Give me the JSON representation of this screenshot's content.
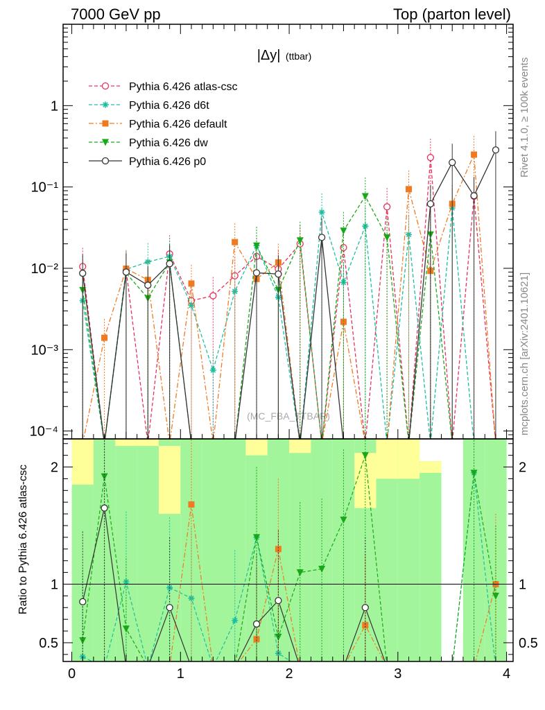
{
  "header": {
    "left": "7000 GeV pp",
    "right": "Top (parton level)"
  },
  "side_labels": {
    "rivet": "Rivet 4.1.0, ≥ 100k events",
    "source": "mcplots.cern.ch [arXiv:2401.10621]"
  },
  "watermark": "(MC_FBA_TTBAR)",
  "chart_data": [
    {
      "type": "line",
      "title": "|Δy| (ttbar)",
      "title_main": "|Δy|",
      "title_sub": "(ttbar)",
      "xlabel": "",
      "ylabel": "",
      "yscale": "log",
      "xlim": [
        -0.08,
        4.06
      ],
      "ylim": [
        8e-05,
        10
      ],
      "y_tick_labels": [
        "1",
        "10⁻¹",
        "10⁻²",
        "10⁻³",
        "10⁻⁴"
      ],
      "y_tick_values": [
        1,
        0.1,
        0.01,
        0.001,
        0.0001
      ],
      "floor": 7e-05,
      "x": [
        0.1,
        0.3,
        0.5,
        0.7,
        0.9,
        1.1,
        1.3,
        1.5,
        1.7,
        1.9,
        2.1,
        2.3,
        2.5,
        2.7,
        2.9,
        3.1,
        3.3,
        3.5,
        3.7,
        3.9
      ],
      "series": [
        {
          "name": "Pythia 6.426 atlas-csc",
          "color": "#e8305a",
          "marker": "circle-open",
          "dash": "5,3",
          "values": [
            0.0105,
            null,
            0.0095,
            null,
            0.015,
            0.004,
            0.0046,
            0.0081,
            0.014,
            0.0098,
            0.02,
            null,
            0.018,
            null,
            0.057,
            null,
            0.23,
            null,
            0.077,
            null
          ]
        },
        {
          "name": "Pythia 6.426 d6t",
          "color": "#1bbfa0",
          "marker": "star",
          "dash": "5,3",
          "values": [
            0.004,
            null,
            0.0097,
            0.012,
            0.014,
            0.0035,
            0.00056,
            0.0052,
            0.019,
            0.0044,
            null,
            0.049,
            0.0067,
            0.033,
            null,
            0.026,
            null,
            0.055,
            null,
            null
          ]
        },
        {
          "name": "Pythia 6.426 default",
          "color": "#f07a22",
          "marker": "square",
          "dash": "7,3,2,3",
          "values": [
            null,
            0.0014,
            0.0099,
            0.0072,
            null,
            0.0065,
            null,
            0.021,
            0.0074,
            0.0118,
            null,
            null,
            0.0022,
            null,
            null,
            0.094,
            0.0093,
            0.062,
            0.25,
            null
          ]
        },
        {
          "name": "Pythia 6.426 dw",
          "color": "#18a818",
          "marker": "triangle-down",
          "dash": "5,3",
          "values": [
            0.0054,
            null,
            0.0087,
            0.0043,
            0.0118,
            null,
            null,
            null,
            0.019,
            0.0054,
            0.022,
            null,
            0.029,
            0.077,
            0.024,
            null,
            0.026,
            null,
            null,
            null
          ]
        },
        {
          "name": "Pythia 6.426 p0",
          "color": "#333333",
          "marker": "circle-open",
          "dash": "",
          "values": [
            0.0087,
            null,
            0.009,
            0.0062,
            0.0114,
            null,
            null,
            null,
            0.0088,
            0.0085,
            null,
            0.024,
            null,
            null,
            null,
            null,
            0.062,
            0.2,
            0.078,
            0.285
          ]
        }
      ]
    },
    {
      "type": "line",
      "title": "Ratio",
      "xlabel": "",
      "ylabel": "Ratio to Pythia 6.426 atlas-csc",
      "xlim": [
        -0.08,
        4.06
      ],
      "ylim": [
        0.34,
        2.24
      ],
      "x_tick_labels": [
        "0",
        "1",
        "2",
        "3",
        "4"
      ],
      "x_tick_values": [
        0,
        1,
        2,
        3,
        4
      ],
      "y_tick_labels": [
        "0.5",
        "1",
        "2"
      ],
      "y_tick_values": [
        0.5,
        1,
        2
      ],
      "band_inner_color": "#a2f59a",
      "band_outer_color": "#ffff99",
      "band_bins": [
        {
          "x0": 0.0,
          "x1": 0.2,
          "inner": [
            0.34,
            2.24
          ],
          "outer": [
            0.34,
            2.24
          ],
          "outer_visible": [
            1.85,
            2.24
          ]
        },
        {
          "x0": 0.4,
          "x1": 0.6,
          "inner": [
            0.34,
            2.24
          ],
          "outer": [
            0.34,
            2.24
          ],
          "outer_visible": [
            2.18,
            2.24
          ]
        },
        {
          "x0": 0.6,
          "x1": 0.8,
          "inner": [
            0.34,
            2.24
          ],
          "outer": [
            0.34,
            2.24
          ],
          "outer_visible": [
            2.18,
            2.24
          ]
        },
        {
          "x0": 0.8,
          "x1": 1.0,
          "inner": [
            0.34,
            2.24
          ],
          "outer": [
            0.34,
            2.24
          ],
          "outer_visible": [
            1.6,
            2.18
          ]
        },
        {
          "x0": 1.6,
          "x1": 1.8,
          "inner": [
            0.34,
            2.24
          ],
          "outer": [
            0.34,
            2.24
          ],
          "outer_visible": [
            2.1,
            2.24
          ]
        },
        {
          "x0": 2.0,
          "x1": 2.2,
          "inner": [
            0.34,
            2.24
          ],
          "outer": [
            0.34,
            2.24
          ],
          "outer_visible": [
            2.12,
            2.24
          ]
        },
        {
          "x0": 2.6,
          "x1": 2.8,
          "inner": [
            0.37,
            2.24
          ],
          "outer": [
            0.34,
            2.24
          ],
          "outer_visible": [
            1.65,
            2.12
          ]
        },
        {
          "x0": 2.8,
          "x1": 3.0,
          "inner": [
            0.34,
            2.24
          ],
          "outer": [
            0.34,
            2.24
          ],
          "outer_visible": [
            1.9,
            2.24
          ]
        },
        {
          "x0": 3.0,
          "x1": 3.2,
          "inner": [
            0.34,
            2.24
          ],
          "outer": [
            0.34,
            2.24
          ],
          "outer_visible": [
            1.9,
            2.24
          ]
        },
        {
          "x0": 3.2,
          "x1": 3.4,
          "inner": [
            0.34,
            1.95
          ],
          "outer": [
            0.34,
            2.05
          ],
          "outer_visible": [
            1.95,
            2.05
          ]
        }
      ],
      "series": [
        {
          "name": "d6t",
          "values": [
            0.38,
            null,
            1.02,
            null,
            0.97,
            0.88,
            null,
            0.69,
            1.4,
            0.41,
            null,
            null,
            null,
            null,
            null,
            null,
            null,
            null,
            1.95,
            null
          ]
        },
        {
          "name": "default",
          "values": [
            null,
            null,
            null,
            null,
            null,
            1.68,
            null,
            null,
            0.53,
            1.3,
            null,
            null,
            null,
            0.65,
            null,
            null,
            null,
            null,
            null,
            1.0
          ]
        },
        {
          "name": "dw",
          "values": [
            0.52,
            1.92,
            0.62,
            null,
            null,
            null,
            null,
            null,
            1.4,
            0.55,
            1.1,
            1.13,
            1.55,
            2.1,
            null,
            null,
            null,
            null,
            1.95,
            0.9
          ]
        },
        {
          "name": "p0",
          "values": [
            0.85,
            1.65,
            null,
            null,
            0.8,
            null,
            null,
            null,
            0.66,
            0.86,
            null,
            null,
            null,
            0.8,
            null,
            null,
            null,
            null,
            null,
            null
          ]
        }
      ]
    }
  ]
}
